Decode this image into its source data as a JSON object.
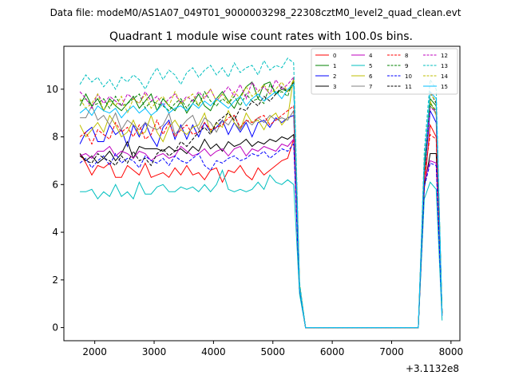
{
  "figure": {
    "suptitle": "Data file: modeM0/AS1A07_049T01_9000003298_22308cztM0_level2_quad_clean.evt"
  },
  "chart_data": {
    "type": "line",
    "title": "Quadrant 1 module wise count rates with 100.0s bins.",
    "xlabel": "",
    "ylabel": "",
    "x_offset_label": "+3.1132e8",
    "xlim": [
      1480,
      8150
    ],
    "ylim": [
      -0.55,
      11.8
    ],
    "xticks": [
      2000,
      3000,
      4000,
      5000,
      6000,
      7000,
      8000
    ],
    "xtick_labels": [
      "2000",
      "3000",
      "4000",
      "5000",
      "6000",
      "7000",
      "8000"
    ],
    "yticks": [
      0,
      2,
      4,
      6,
      8,
      10
    ],
    "ytick_labels": [
      "0",
      "2",
      "4",
      "6",
      "8",
      "10"
    ],
    "grid": false,
    "legend_position": "top-right",
    "legend_columns": 4,
    "x": [
      1750,
      1850,
      1950,
      2050,
      2150,
      2250,
      2350,
      2450,
      2550,
      2650,
      2750,
      2850,
      2950,
      3050,
      3150,
      3250,
      3350,
      3450,
      3550,
      3650,
      3750,
      3850,
      3950,
      4050,
      4150,
      4250,
      4350,
      4450,
      4550,
      4650,
      4750,
      4850,
      4950,
      5050,
      5150,
      5250,
      5350,
      5450,
      5550,
      5650,
      5750,
      5850,
      5950,
      6050,
      6150,
      6250,
      6350,
      6450,
      6550,
      6650,
      6750,
      6850,
      6950,
      7050,
      7150,
      7250,
      7350,
      7450,
      7550,
      7650,
      7750,
      7850
    ],
    "series": [
      {
        "name": "0",
        "color": "#ff0000",
        "dash": "solid",
        "values": [
          7.3,
          6.9,
          6.4,
          6.8,
          6.7,
          6.9,
          6.3,
          6.3,
          6.8,
          6.6,
          6.4,
          6.9,
          6.3,
          6.4,
          6.5,
          6.3,
          6.7,
          6.4,
          6.8,
          6.4,
          6.5,
          6.2,
          6.6,
          6.7,
          6.1,
          6.6,
          6.5,
          6.8,
          6.4,
          6.2,
          6.7,
          6.4,
          6.6,
          6.8,
          7.0,
          7.1,
          7.9,
          1.6,
          0,
          0,
          0,
          0,
          0,
          0,
          0,
          0,
          0,
          0,
          0,
          0,
          0,
          0,
          0,
          0,
          0,
          0,
          0,
          0,
          5.8,
          8.5,
          8.0,
          0.6
        ]
      },
      {
        "name": "1",
        "color": "#008000",
        "dash": "solid",
        "values": [
          9.3,
          9.8,
          9.3,
          9.6,
          9.1,
          9.6,
          9.3,
          9.1,
          9.4,
          9.7,
          9.2,
          9.5,
          9.8,
          9.1,
          9.6,
          9.3,
          9.1,
          9.5,
          9.0,
          9.4,
          9.8,
          9.3,
          9.1,
          9.6,
          9.9,
          9.5,
          9.2,
          9.7,
          10.1,
          10.3,
          9.6,
          10.2,
          10.3,
          9.8,
          10.0,
          9.9,
          10.2,
          1.7,
          0,
          0,
          0,
          0,
          0,
          0,
          0,
          0,
          0,
          0,
          0,
          0,
          0,
          0,
          0,
          0,
          0,
          0,
          0,
          0,
          6.8,
          9.6,
          9.3,
          0.6
        ]
      },
      {
        "name": "2",
        "color": "#0000ff",
        "dash": "solid",
        "values": [
          7.7,
          8.2,
          8.4,
          7.8,
          7.8,
          8.5,
          8.1,
          8.3,
          7.6,
          8.5,
          8.0,
          8.6,
          8.0,
          7.6,
          8.4,
          8.7,
          7.9,
          8.5,
          7.9,
          8.5,
          8.0,
          8.6,
          8.2,
          8.4,
          8.7,
          8.1,
          8.6,
          8.2,
          8.6,
          8.0,
          8.6,
          8.7,
          8.4,
          8.8,
          8.6,
          8.8,
          8.9,
          1.7,
          0,
          0,
          0,
          0,
          0,
          0,
          0,
          0,
          0,
          0,
          0,
          0,
          0,
          0,
          0,
          0,
          0,
          0,
          0,
          0,
          6.3,
          9.1,
          8.6,
          0.6
        ]
      },
      {
        "name": "3",
        "color": "#000000",
        "dash": "solid",
        "values": [
          7.3,
          7.0,
          7.2,
          6.9,
          7.1,
          7.4,
          7.0,
          7.3,
          7.8,
          7.1,
          7.6,
          7.5,
          7.5,
          7.5,
          7.4,
          7.6,
          7.4,
          7.5,
          7.3,
          7.6,
          7.4,
          7.9,
          7.5,
          7.7,
          7.4,
          7.8,
          7.6,
          7.7,
          7.9,
          7.6,
          7.8,
          7.7,
          7.9,
          7.8,
          8.0,
          7.9,
          8.1,
          1.6,
          0,
          0,
          0,
          0,
          0,
          0,
          0,
          0,
          0,
          0,
          0,
          0,
          0,
          0,
          0,
          0,
          0,
          0,
          0,
          0,
          5.9,
          7.3,
          7.3,
          0.6
        ]
      },
      {
        "name": "4",
        "color": "#bf00bf",
        "dash": "solid",
        "values": [
          7.2,
          7.3,
          7.1,
          7.4,
          7.4,
          7.6,
          7.2,
          7.4,
          7.3,
          7.1,
          7.4,
          7.3,
          7.0,
          7.2,
          7.3,
          7.1,
          7.2,
          7.6,
          7.4,
          7.2,
          7.3,
          7.5,
          7.2,
          7.4,
          7.5,
          7.2,
          7.5,
          7.6,
          7.2,
          7.5,
          7.4,
          7.6,
          7.5,
          7.4,
          7.7,
          7.6,
          7.9,
          1.6,
          0,
          0,
          0,
          0,
          0,
          0,
          0,
          0,
          0,
          0,
          0,
          0,
          0,
          0,
          0,
          0,
          0,
          0,
          0,
          0,
          6.1,
          7.0,
          6.9,
          0.6
        ]
      },
      {
        "name": "5",
        "color": "#00bfbf",
        "dash": "solid",
        "values": [
          5.7,
          5.7,
          5.8,
          5.4,
          5.7,
          5.5,
          6.0,
          5.5,
          5.7,
          5.4,
          6.1,
          5.6,
          5.6,
          5.9,
          6.0,
          5.7,
          5.7,
          5.9,
          5.8,
          5.9,
          5.7,
          6.0,
          5.7,
          6.0,
          6.6,
          5.8,
          5.7,
          5.8,
          5.7,
          5.8,
          6.1,
          5.8,
          6.4,
          6.1,
          6.0,
          6.2,
          6.0,
          1.4,
          0,
          0,
          0,
          0,
          0,
          0,
          0,
          0,
          0,
          0,
          0,
          0,
          0,
          0,
          0,
          0,
          0,
          0,
          0,
          0,
          5.4,
          6.1,
          5.8,
          0.3
        ]
      },
      {
        "name": "6",
        "color": "#bfbf00",
        "dash": "solid",
        "values": [
          8.5,
          8.0,
          8.3,
          8.6,
          8.2,
          8.9,
          8.5,
          8.0,
          8.2,
          8.7,
          8.1,
          8.2,
          8.9,
          8.2,
          7.8,
          8.4,
          8.7,
          8.3,
          8.1,
          8.4,
          8.5,
          9.0,
          8.2,
          8.6,
          8.4,
          9.1,
          8.6,
          8.3,
          9.0,
          8.6,
          8.7,
          8.3,
          8.8,
          9.0,
          8.5,
          8.8,
          10.5,
          1.8,
          0,
          0,
          0,
          0,
          0,
          0,
          0,
          0,
          0,
          0,
          0,
          0,
          0,
          0,
          0,
          0,
          0,
          0,
          0,
          0,
          6.5,
          9.5,
          8.9,
          0.5
        ]
      },
      {
        "name": "7",
        "color": "#808080",
        "dash": "solid",
        "values": [
          8.8,
          8.8,
          9.3,
          8.7,
          8.9,
          8.5,
          9.0,
          8.3,
          8.7,
          8.5,
          8.3,
          8.6,
          8.4,
          8.3,
          8.5,
          9.0,
          8.1,
          8.4,
          8.7,
          8.9,
          8.3,
          8.8,
          8.6,
          8.2,
          8.7,
          8.5,
          8.9,
          8.3,
          8.7,
          8.5,
          8.8,
          8.6,
          8.9,
          8.7,
          8.8,
          8.7,
          9.1,
          1.7,
          0,
          0,
          0,
          0,
          0,
          0,
          0,
          0,
          0,
          0,
          0,
          0,
          0,
          0,
          0,
          0,
          0,
          0,
          0,
          0,
          6.8,
          9.3,
          9.0,
          0.6
        ]
      },
      {
        "name": "8",
        "color": "#ff0000",
        "dash": "dashed",
        "values": [
          8.0,
          8.2,
          7.7,
          8.3,
          8.1,
          7.9,
          8.6,
          8.2,
          8.4,
          8.0,
          8.5,
          7.9,
          8.1,
          8.7,
          8.1,
          8.6,
          8.0,
          8.3,
          8.5,
          8.1,
          8.2,
          8.6,
          8.3,
          8.4,
          8.5,
          8.8,
          8.9,
          8.4,
          8.7,
          8.6,
          8.8,
          8.9,
          8.5,
          8.7,
          8.9,
          9.1,
          9.3,
          1.7,
          0,
          0,
          0,
          0,
          0,
          0,
          0,
          0,
          0,
          0,
          0,
          0,
          0,
          0,
          0,
          0,
          0,
          0,
          0,
          0,
          6.3,
          8.1,
          7.9,
          0.6
        ]
      },
      {
        "name": "9",
        "color": "#008000",
        "dash": "dashed",
        "values": [
          9.5,
          9.6,
          9.3,
          9.4,
          9.6,
          9.2,
          9.7,
          9.3,
          9.4,
          9.6,
          9.8,
          9.2,
          9.5,
          9.4,
          9.3,
          9.1,
          9.4,
          9.6,
          9.2,
          9.6,
          9.3,
          9.9,
          9.5,
          9.3,
          9.6,
          9.4,
          9.7,
          9.3,
          9.8,
          9.5,
          9.6,
          9.4,
          10.2,
          9.8,
          9.9,
          9.7,
          10.4,
          1.7,
          0,
          0,
          0,
          0,
          0,
          0,
          0,
          0,
          0,
          0,
          0,
          0,
          0,
          0,
          0,
          0,
          0,
          0,
          0,
          0,
          6.6,
          9.4,
          9.1,
          0.6
        ]
      },
      {
        "name": "10",
        "color": "#0000ff",
        "dash": "dashed",
        "values": [
          6.9,
          7.1,
          6.7,
          7.0,
          7.2,
          6.8,
          7.3,
          6.9,
          7.1,
          7.0,
          6.7,
          7.2,
          7.0,
          6.9,
          7.1,
          6.8,
          7.2,
          7.0,
          6.9,
          7.1,
          7.3,
          6.8,
          6.6,
          7.0,
          6.9,
          7.1,
          7.2,
          7.0,
          7.1,
          7.3,
          7.2,
          7.4,
          7.1,
          7.3,
          7.5,
          7.4,
          7.7,
          1.6,
          0,
          0,
          0,
          0,
          0,
          0,
          0,
          0,
          0,
          0,
          0,
          0,
          0,
          0,
          0,
          0,
          0,
          0,
          0,
          0,
          5.9,
          6.9,
          6.8,
          0.5
        ]
      },
      {
        "name": "11",
        "color": "#000000",
        "dash": "dashed",
        "values": [
          7.2,
          7.0,
          6.9,
          7.3,
          7.1,
          7.0,
          6.8,
          7.2,
          6.9,
          7.4,
          7.0,
          7.1,
          6.8,
          7.3,
          7.5,
          7.2,
          7.4,
          7.8,
          7.6,
          7.9,
          8.2,
          8.4,
          8.1,
          8.6,
          8.8,
          9.0,
          8.7,
          9.2,
          9.1,
          9.5,
          9.3,
          9.7,
          9.5,
          9.8,
          10.1,
          9.9,
          10.3,
          1.7,
          0,
          0,
          0,
          0,
          0,
          0,
          0,
          0,
          0,
          0,
          0,
          0,
          0,
          0,
          0,
          0,
          0,
          0,
          0,
          0,
          6.7,
          9.9,
          9.4,
          0.6
        ]
      },
      {
        "name": "12",
        "color": "#bf00bf",
        "dash": "dashed",
        "values": [
          9.9,
          9.6,
          9.2,
          9.8,
          9.4,
          9.7,
          9.5,
          9.3,
          9.8,
          9.6,
          9.4,
          9.9,
          9.5,
          9.7,
          9.3,
          9.6,
          9.8,
          9.4,
          9.7,
          9.5,
          9.9,
          9.6,
          10.0,
          9.5,
          9.8,
          10.1,
          9.7,
          10.2,
          9.6,
          10.3,
          9.9,
          10.1,
          9.8,
          10.4,
          10.0,
          10.2,
          10.5,
          1.8,
          0,
          0,
          0,
          0,
          0,
          0,
          0,
          0,
          0,
          0,
          0,
          0,
          0,
          0,
          0,
          0,
          0,
          0,
          0,
          0,
          7.0,
          9.2,
          9.1,
          0.6
        ]
      },
      {
        "name": "13",
        "color": "#00bfbf",
        "dash": "dashed",
        "values": [
          10.2,
          10.6,
          10.3,
          10.5,
          10.1,
          10.4,
          10.0,
          10.5,
          10.3,
          10.6,
          10.4,
          10.0,
          10.5,
          10.9,
          10.4,
          10.8,
          10.6,
          10.2,
          10.7,
          10.9,
          10.5,
          10.8,
          11.0,
          10.6,
          10.9,
          10.5,
          11.1,
          10.7,
          10.9,
          11.0,
          10.6,
          11.2,
          10.8,
          11.0,
          10.9,
          11.3,
          11.1,
          1.9,
          0,
          0,
          0,
          0,
          0,
          0,
          0,
          0,
          0,
          0,
          0,
          0,
          0,
          0,
          0,
          0,
          0,
          0,
          0,
          0,
          7.4,
          10.4,
          10.0,
          0.6
        ]
      },
      {
        "name": "14",
        "color": "#bfbf00",
        "dash": "dashed",
        "values": [
          9.6,
          9.2,
          9.4,
          9.8,
          9.1,
          9.5,
          9.3,
          9.7,
          9.0,
          9.6,
          9.4,
          9.8,
          9.2,
          9.5,
          9.7,
          9.3,
          9.9,
          9.4,
          9.6,
          9.8,
          9.3,
          9.7,
          10.0,
          9.5,
          9.8,
          9.4,
          9.9,
          9.6,
          10.1,
          9.7,
          9.9,
          10.2,
          9.8,
          10.0,
          10.3,
          9.9,
          10.4,
          1.8,
          0,
          0,
          0,
          0,
          0,
          0,
          0,
          0,
          0,
          0,
          0,
          0,
          0,
          0,
          0,
          0,
          0,
          0,
          0,
          0,
          7.0,
          9.8,
          9.5,
          0.6
        ]
      },
      {
        "name": "15",
        "color": "#00bfff",
        "dash": "solid",
        "values": [
          9.0,
          9.2,
          8.9,
          9.3,
          9.1,
          9.0,
          9.2,
          8.8,
          9.1,
          9.3,
          9.0,
          9.2,
          8.9,
          9.1,
          9.4,
          9.0,
          9.2,
          9.3,
          9.1,
          9.4,
          9.2,
          9.5,
          9.3,
          9.6,
          9.4,
          9.2,
          9.5,
          9.7,
          9.3,
          9.6,
          9.8,
          9.5,
          9.7,
          9.9,
          9.6,
          10.0,
          10.2,
          1.7,
          0,
          0,
          0,
          0,
          0,
          0,
          0,
          0,
          0,
          0,
          0,
          0,
          0,
          0,
          0,
          0,
          0,
          0,
          0,
          0,
          6.9,
          9.9,
          9.6,
          0.5
        ]
      }
    ]
  }
}
